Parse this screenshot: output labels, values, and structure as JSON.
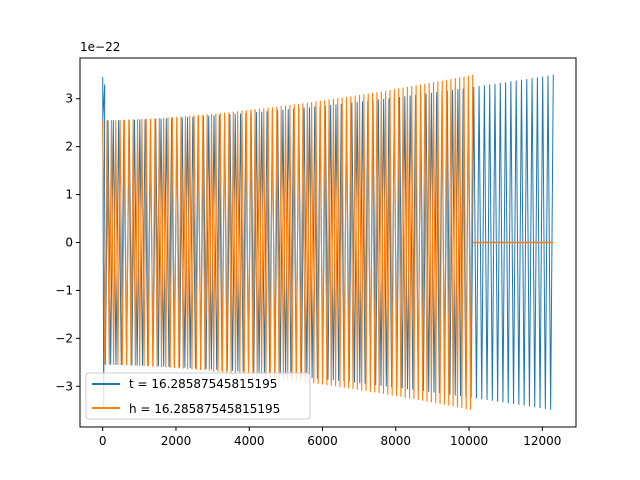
{
  "chart_data": {
    "type": "line",
    "title": "",
    "xlabel": "",
    "ylabel": "",
    "xlim": [
      -620,
      12920
    ],
    "ylim": [
      -3.85,
      3.85
    ],
    "y_multiplier_label": "1e−22",
    "x_ticks": [
      0,
      2000,
      4000,
      6000,
      8000,
      10000,
      12000
    ],
    "x_tick_labels": [
      "0",
      "2000",
      "4000",
      "6000",
      "8000",
      "10000",
      "12000"
    ],
    "y_ticks": [
      -3,
      -2,
      -1,
      0,
      1,
      2,
      3
    ],
    "y_tick_labels": [
      "−3",
      "−2",
      "−1",
      "0",
      "1",
      "2",
      "3"
    ],
    "grid": false,
    "legend_position": "lower-left",
    "series": [
      {
        "name": "t = 16.28587545815195",
        "color": "#1f77b4",
        "x_start": 0,
        "x_end": 12300,
        "amplitude_start": 2.55,
        "amplitude_end": 3.5,
        "initial_spike": 3.45
      },
      {
        "name": "h = 16.28587545815195",
        "color": "#ff7f0e",
        "x_start": 0,
        "x_end": 10100,
        "amplitude_start": 2.55,
        "amplitude_end": 3.5,
        "flat_after_end_until": 12300,
        "flat_value": 0
      }
    ]
  }
}
